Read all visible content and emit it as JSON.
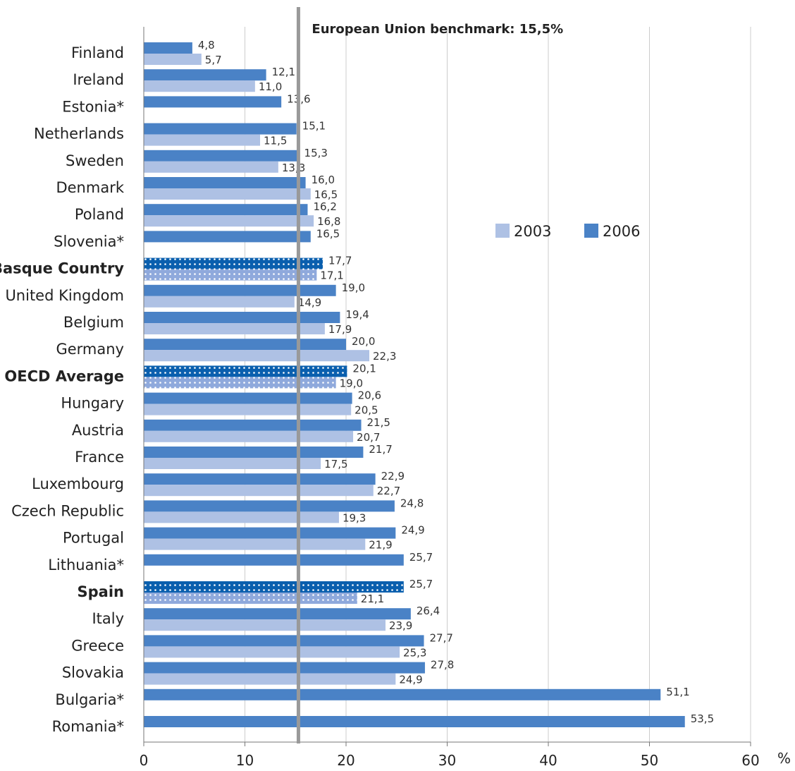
{
  "chart_data": {
    "type": "bar",
    "orientation": "horizontal",
    "unit_label": "%",
    "xlim": [
      0,
      60
    ],
    "x_ticks": [
      0,
      10,
      20,
      30,
      40,
      50,
      60
    ],
    "grid": true,
    "legend_position": "right-upper",
    "series": [
      {
        "name": "2006",
        "color": "#4a82c6",
        "values": [
          4.8,
          12.1,
          13.6,
          15.1,
          15.3,
          16.0,
          16.2,
          16.5,
          17.7,
          19.0,
          19.4,
          20.0,
          20.1,
          20.6,
          21.5,
          21.7,
          22.9,
          24.8,
          24.9,
          25.7,
          25.7,
          26.4,
          27.7,
          27.8,
          51.1,
          53.5
        ],
        "labels": [
          "4,8",
          "12,1",
          "13,6",
          "15,1",
          "15,3",
          "16,0",
          "16,2",
          "16,5",
          "17,7",
          "19,0",
          "19,4",
          "20,0",
          "20,1",
          "20,6",
          "21,5",
          "21,7",
          "22,9",
          "24,8",
          "24,9",
          "25,7",
          "25,7",
          "26,4",
          "27,7",
          "27,8",
          "51,1",
          "53,5"
        ]
      },
      {
        "name": "2003",
        "color": "#aec1e4",
        "values": [
          5.7,
          11.0,
          null,
          11.5,
          13.3,
          16.5,
          16.8,
          null,
          17.1,
          14.9,
          17.9,
          22.3,
          19.0,
          20.5,
          20.7,
          17.5,
          22.7,
          19.3,
          21.9,
          null,
          21.1,
          23.9,
          25.3,
          24.9,
          null,
          null
        ],
        "labels": [
          "5,7",
          "11,0",
          null,
          "11,5",
          "13,3",
          "16,5",
          "16,8",
          null,
          "17,1",
          "14,9",
          "17,9",
          "22,3",
          "19,0",
          "20,5",
          "20,7",
          "17,5",
          "22,7",
          "19,3",
          "21,9",
          null,
          "21,1",
          "23,9",
          "25,3",
          "24,9",
          null,
          null
        ]
      }
    ],
    "categories": [
      "Finland",
      "Ireland",
      "Estonia*",
      "Netherlands",
      "Sweden",
      "Denmark",
      "Poland",
      "Slovenia*",
      "Basque Country",
      "United Kingdom",
      "Belgium",
      "Germany",
      "OECD Average",
      "Hungary",
      "Austria",
      "France",
      "Luxembourg",
      "Czech Republic",
      "Portugal",
      "Lithuania*",
      "Spain",
      "Italy",
      "Greece",
      "Slovakia",
      "Bulgaria*",
      "Romania*"
    ],
    "highlighted": [
      "Basque Country",
      "OECD Average",
      "Spain"
    ],
    "highlight_color_2006": "#0a5fae",
    "highlight_color_2003": "#8fa9dc",
    "benchmark": {
      "value": 15.5,
      "label": "European Union benchmark: 15,5%",
      "color": "#999999"
    }
  }
}
